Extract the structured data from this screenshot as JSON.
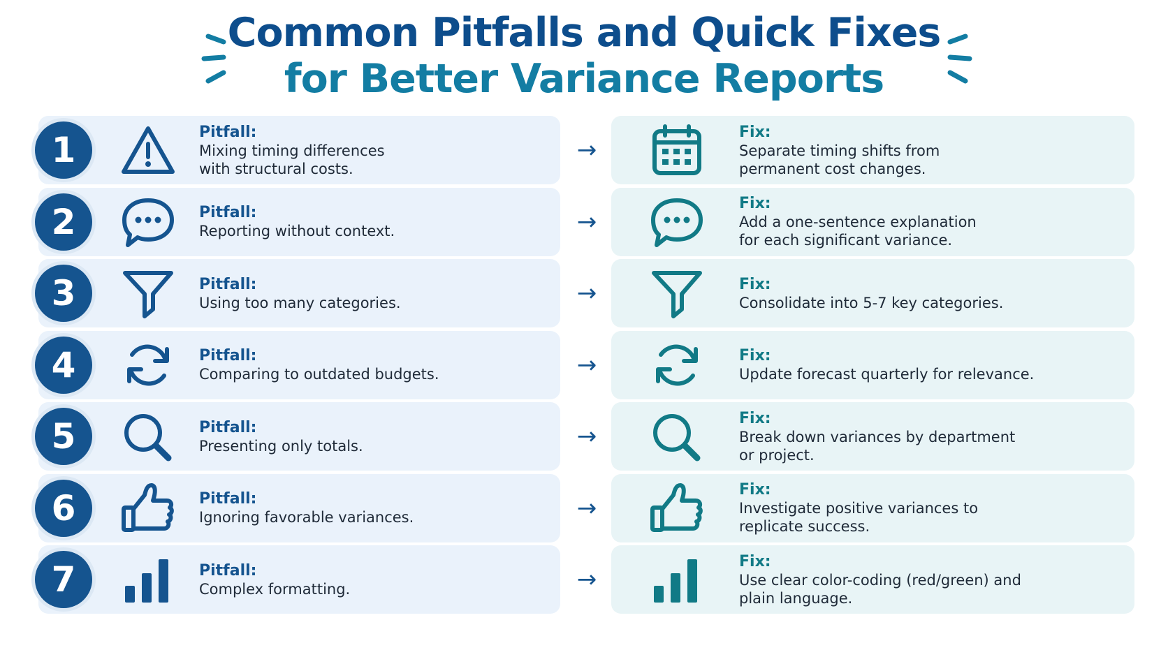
{
  "title": {
    "line1": "Common Pitfalls and Quick Fixes",
    "line2": "for Better Variance Reports"
  },
  "colors": {
    "pitfall_accent": "#15548f",
    "fix_accent": "#117a86",
    "pitfall_card": "#eaf2fb",
    "fix_card": "#e8f4f6"
  },
  "arrow_glyph": "→",
  "rows": [
    {
      "number": "1",
      "icon": "warning-triangle-icon",
      "pitfall_label": "Pitfall:",
      "pitfall_text": "Mixing timing differences\nwith structural costs.",
      "fix_icon": "calendar-icon",
      "fix_label": "Fix:",
      "fix_text": "Separate timing shifts from\npermanent cost changes."
    },
    {
      "number": "2",
      "icon": "speech-bubble-icon",
      "pitfall_label": "Pitfall:",
      "pitfall_text": "Reporting without context.",
      "fix_icon": "speech-bubble-icon",
      "fix_label": "Fix:",
      "fix_text": "Add a one-sentence explanation\nfor each significant variance."
    },
    {
      "number": "3",
      "icon": "funnel-icon",
      "pitfall_label": "Pitfall:",
      "pitfall_text": "Using too many categories.",
      "fix_icon": "funnel-icon",
      "fix_label": "Fix:",
      "fix_text": "Consolidate into 5-7 key categories."
    },
    {
      "number": "4",
      "icon": "refresh-icon",
      "pitfall_label": "Pitfall:",
      "pitfall_text": "Comparing to outdated budgets.",
      "fix_icon": "refresh-icon",
      "fix_label": "Fix:",
      "fix_text": "Update forecast quarterly for relevance."
    },
    {
      "number": "5",
      "icon": "magnifier-icon",
      "pitfall_label": "Pitfall:",
      "pitfall_text": "Presenting only totals.",
      "fix_icon": "magnifier-icon",
      "fix_label": "Fix:",
      "fix_text": "Break down variances by department\nor project."
    },
    {
      "number": "6",
      "icon": "thumbs-up-icon",
      "pitfall_label": "Pitfall:",
      "pitfall_text": "Ignoring favorable variances.",
      "fix_icon": "thumbs-up-icon",
      "fix_label": "Fix:",
      "fix_text": "Investigate positive variances to\nreplicate success."
    },
    {
      "number": "7",
      "icon": "bar-chart-icon",
      "pitfall_label": "Pitfall:",
      "pitfall_text": "Complex formatting.",
      "fix_icon": "bar-chart-icon",
      "fix_label": "Fix:",
      "fix_text": "Use clear color-coding (red/green) and\nplain language."
    }
  ]
}
